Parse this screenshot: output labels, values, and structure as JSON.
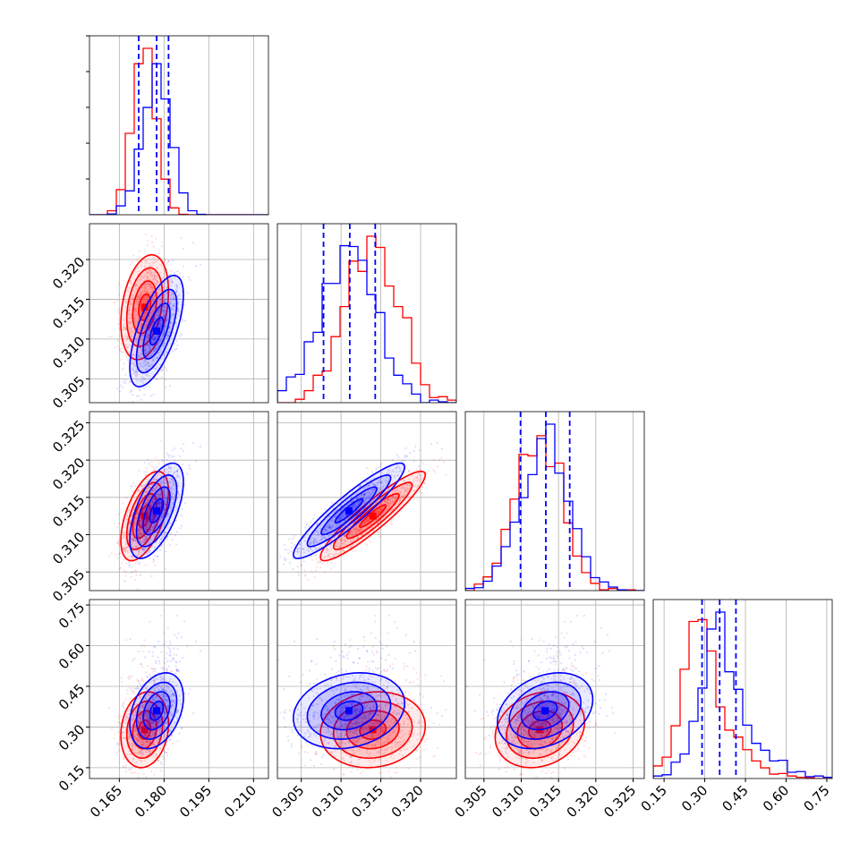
{
  "colors": {
    "series_a": "#ff0000",
    "series_b": "#0000ff",
    "grid": "#b0b0b0",
    "quantile": "#0000ff"
  },
  "chart_data": {
    "type": "corner",
    "grid": true,
    "parameters": [
      {
        "range": [
          0.155,
          0.215
        ],
        "ticks": [
          "0.165",
          "0.180",
          "0.195",
          "0.210"
        ],
        "tick_values": [
          0.165,
          0.18,
          0.195,
          0.21
        ]
      },
      {
        "range": [
          0.302,
          0.3245
        ],
        "ticks": [
          "0.305",
          "0.310",
          "0.315",
          "0.320"
        ],
        "tick_values": [
          0.305,
          0.31,
          0.315,
          0.32
        ]
      },
      {
        "range": [
          0.3025,
          0.3265
        ],
        "ticks": [
          "0.305",
          "0.310",
          "0.315",
          "0.320",
          "0.325"
        ],
        "tick_values": [
          0.305,
          0.31,
          0.315,
          0.32,
          0.325
        ]
      },
      {
        "range": [
          0.11,
          0.77
        ],
        "ticks": [
          "0.15",
          "0.30",
          "0.45",
          "0.60",
          "0.75"
        ],
        "tick_values": [
          0.15,
          0.3,
          0.45,
          0.6,
          0.75
        ]
      }
    ],
    "series": [
      {
        "color": "#ff0000",
        "means": [
          0.1735,
          0.314,
          0.3125,
          0.29
        ],
        "stds": [
          0.004,
          0.0033,
          0.003,
          0.07
        ],
        "corr": [
          [
            1,
            0.3,
            0.55,
            0.15
          ],
          [
            0.3,
            1,
            0.92,
            0.1
          ],
          [
            0.55,
            0.92,
            1,
            0.2
          ],
          [
            0.15,
            0.1,
            0.2,
            1
          ]
        ]
      },
      {
        "color": "#0000ff",
        "means": [
          0.1775,
          0.311,
          0.3132,
          0.36
        ],
        "stds": [
          0.0045,
          0.0035,
          0.0032,
          0.07
        ],
        "corr": [
          [
            1,
            0.65,
            0.6,
            0.35
          ],
          [
            0.65,
            1,
            0.92,
            0.2
          ],
          [
            0.6,
            0.92,
            1,
            0.3
          ],
          [
            0.35,
            0.2,
            0.3,
            1
          ]
        ]
      }
    ],
    "quantile_lines": [
      [
        0.1715,
        0.1775,
        0.1815
      ],
      [
        0.3078,
        0.3111,
        0.3143
      ],
      [
        0.3099,
        0.3133,
        0.3165
      ],
      [
        0.29,
        0.355,
        0.415
      ]
    ]
  }
}
